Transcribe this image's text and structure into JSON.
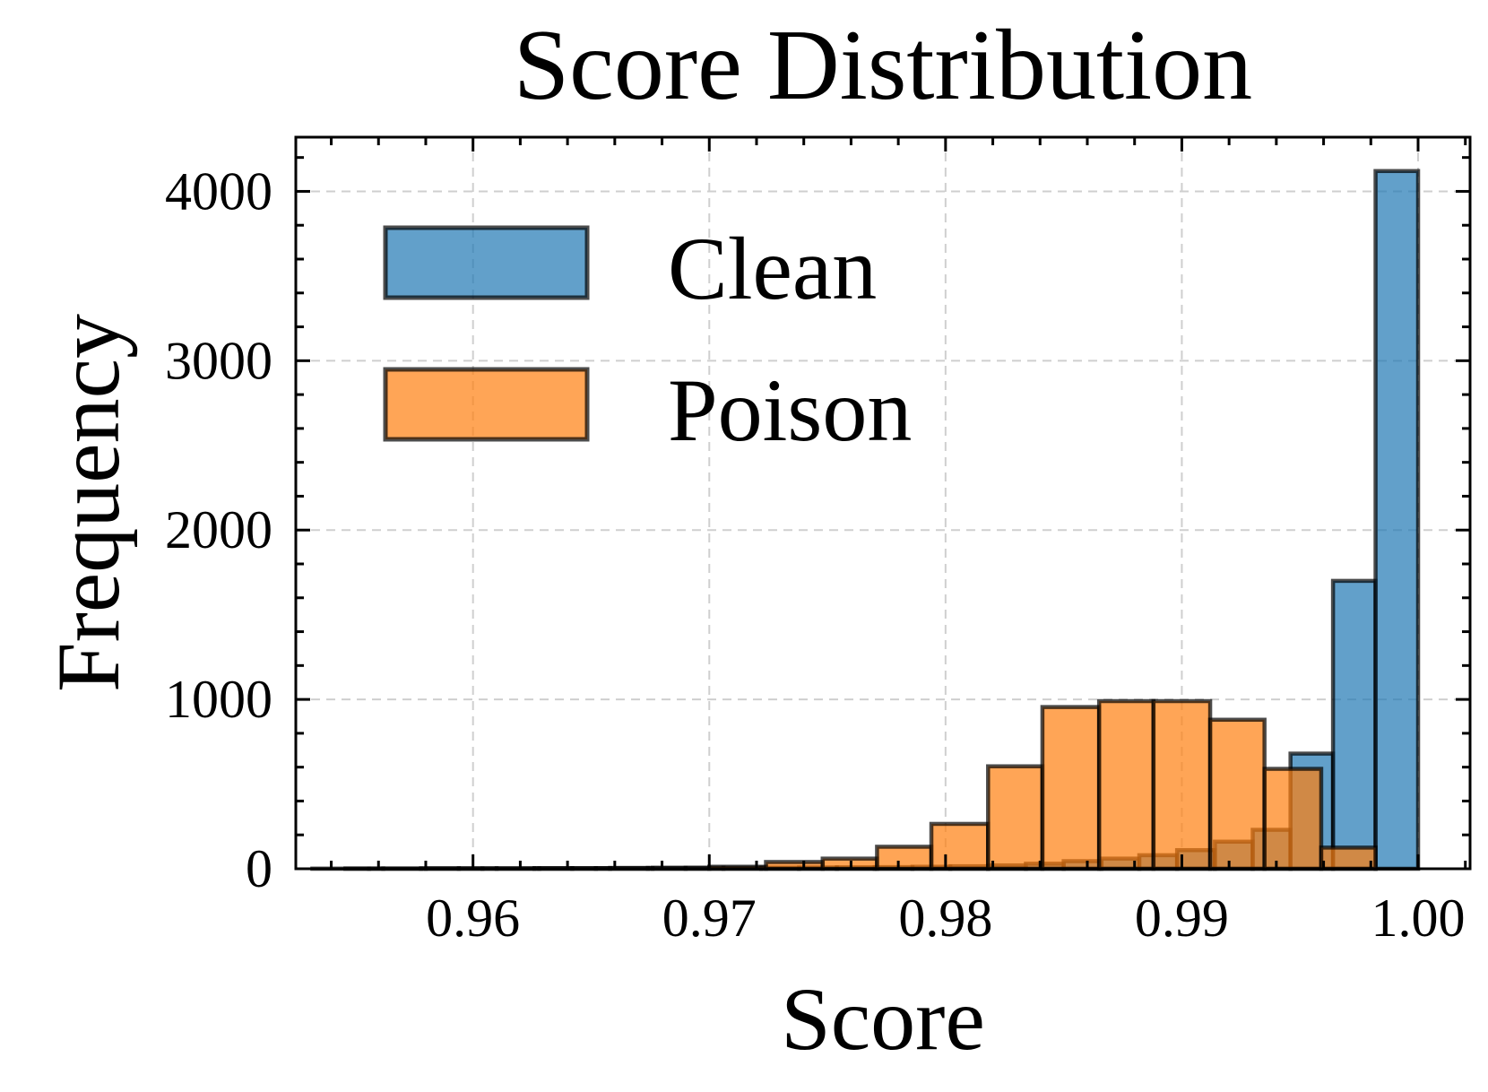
{
  "chart_data": {
    "type": "bar",
    "title": "Score Distribution",
    "xlabel": "Score",
    "ylabel": "Frequency",
    "xlim": [
      0.9525,
      1.0022
    ],
    "ylim": [
      0,
      4320
    ],
    "x_ticks": [
      0.96,
      0.97,
      0.98,
      0.99,
      1.0
    ],
    "x_tick_labels": [
      "0.96",
      "0.97",
      "0.98",
      "0.99",
      "1.00"
    ],
    "y_ticks": [
      0,
      1000,
      2000,
      3000,
      4000
    ],
    "y_tick_labels": [
      "0",
      "1000",
      "2000",
      "3000",
      "4000"
    ],
    "grid": true,
    "legend_position": "top-left",
    "series": [
      {
        "name": "Clean",
        "color": "#1f77b4",
        "bins": [
          {
            "x0": 0.9546,
            "x1": 0.9562,
            "value": 2
          },
          {
            "x0": 0.9562,
            "x1": 0.9578,
            "value": 2
          },
          {
            "x0": 0.9578,
            "x1": 0.9594,
            "value": 3
          },
          {
            "x0": 0.9594,
            "x1": 0.961,
            "value": 3
          },
          {
            "x0": 0.961,
            "x1": 0.9626,
            "value": 3
          },
          {
            "x0": 0.9626,
            "x1": 0.9642,
            "value": 4
          },
          {
            "x0": 0.9642,
            "x1": 0.9658,
            "value": 4
          },
          {
            "x0": 0.9658,
            "x1": 0.9674,
            "value": 5
          },
          {
            "x0": 0.9674,
            "x1": 0.969,
            "value": 5
          },
          {
            "x0": 0.969,
            "x1": 0.9706,
            "value": 6
          },
          {
            "x0": 0.9706,
            "x1": 0.9722,
            "value": 6
          },
          {
            "x0": 0.9722,
            "x1": 0.9738,
            "value": 7
          },
          {
            "x0": 0.9738,
            "x1": 0.9754,
            "value": 8
          },
          {
            "x0": 0.9754,
            "x1": 0.977,
            "value": 9
          },
          {
            "x0": 0.977,
            "x1": 0.9786,
            "value": 10
          },
          {
            "x0": 0.9786,
            "x1": 0.9802,
            "value": 12
          },
          {
            "x0": 0.9802,
            "x1": 0.9818,
            "value": 15
          },
          {
            "x0": 0.9818,
            "x1": 0.9834,
            "value": 20
          },
          {
            "x0": 0.9834,
            "x1": 0.985,
            "value": 30
          },
          {
            "x0": 0.985,
            "x1": 0.9866,
            "value": 45
          },
          {
            "x0": 0.9866,
            "x1": 0.9882,
            "value": 60
          },
          {
            "x0": 0.9882,
            "x1": 0.9898,
            "value": 80
          },
          {
            "x0": 0.9898,
            "x1": 0.9914,
            "value": 110
          },
          {
            "x0": 0.9914,
            "x1": 0.993,
            "value": 160
          },
          {
            "x0": 0.993,
            "x1": 0.9946,
            "value": 230
          },
          {
            "x0": 0.9946,
            "x1": 0.9964,
            "value": 680
          },
          {
            "x0": 0.9964,
            "x1": 0.9982,
            "value": 1700
          },
          {
            "x0": 0.9982,
            "x1": 1.0,
            "value": 4120
          }
        ]
      },
      {
        "name": "Poison",
        "color": "#ff7f0e",
        "bins": [
          {
            "x0": 0.9532,
            "x1": 0.9556,
            "value": 1
          },
          {
            "x0": 0.9556,
            "x1": 0.958,
            "value": 1
          },
          {
            "x0": 0.958,
            "x1": 0.9604,
            "value": 2
          },
          {
            "x0": 0.9604,
            "x1": 0.9628,
            "value": 2
          },
          {
            "x0": 0.9628,
            "x1": 0.9652,
            "value": 3
          },
          {
            "x0": 0.9652,
            "x1": 0.9676,
            "value": 4
          },
          {
            "x0": 0.9676,
            "x1": 0.97,
            "value": 6
          },
          {
            "x0": 0.97,
            "x1": 0.9724,
            "value": 12
          },
          {
            "x0": 0.9724,
            "x1": 0.9748,
            "value": 40
          },
          {
            "x0": 0.9748,
            "x1": 0.9771,
            "value": 60
          },
          {
            "x0": 0.9771,
            "x1": 0.9794,
            "value": 130
          },
          {
            "x0": 0.9794,
            "x1": 0.9818,
            "value": 265
          },
          {
            "x0": 0.9818,
            "x1": 0.9841,
            "value": 605
          },
          {
            "x0": 0.9841,
            "x1": 0.9865,
            "value": 955
          },
          {
            "x0": 0.9865,
            "x1": 0.9888,
            "value": 990
          },
          {
            "x0": 0.9888,
            "x1": 0.9912,
            "value": 990
          },
          {
            "x0": 0.9912,
            "x1": 0.9935,
            "value": 880
          },
          {
            "x0": 0.9935,
            "x1": 0.9959,
            "value": 590
          },
          {
            "x0": 0.9959,
            "x1": 0.9982,
            "value": 125
          }
        ]
      }
    ]
  }
}
